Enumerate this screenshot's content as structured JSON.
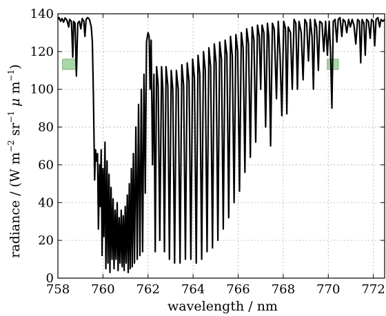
{
  "chart_data": {
    "type": "line",
    "title": "",
    "xlabel": "wavelength / nm",
    "ylabel_parts": {
      "start": "radiance / (W m",
      "sup1": "−2",
      "mid": " sr",
      "sup2": "−1",
      "mu": " μ",
      "end": " m",
      "sup3": "−1",
      "close": ")"
    },
    "xlim": [
      758,
      772.5
    ],
    "ylim": [
      0,
      140
    ],
    "xticks": [
      758,
      760,
      762,
      764,
      766,
      768,
      770,
      772
    ],
    "yticks": [
      0,
      20,
      40,
      60,
      80,
      100,
      120,
      140
    ],
    "grid": true,
    "line_color": "#000000",
    "highlight_color": "#8cc98c",
    "highlights": [
      {
        "x0": 758.2,
        "x1": 758.85,
        "y0": 110.5,
        "y1": 116
      },
      {
        "x0": 769.95,
        "x1": 770.45,
        "y0": 110.5,
        "y1": 116
      }
    ],
    "series": [
      {
        "values": [
          [
            758.0,
            137.0
          ],
          [
            758.05,
            138.0
          ],
          [
            758.12,
            136.0
          ],
          [
            758.18,
            137.5
          ],
          [
            758.25,
            135.5
          ],
          [
            758.32,
            137.8
          ],
          [
            758.4,
            136.5
          ],
          [
            758.48,
            133.0
          ],
          [
            758.52,
            137.0
          ],
          [
            758.6,
            136.0
          ],
          [
            758.66,
            117.0
          ],
          [
            758.7,
            136.0
          ],
          [
            758.76,
            135.0
          ],
          [
            758.82,
            107.0
          ],
          [
            758.88,
            135.0
          ],
          [
            758.95,
            136.0
          ],
          [
            759.02,
            132.0
          ],
          [
            759.08,
            137.5
          ],
          [
            759.15,
            136.0
          ],
          [
            759.2,
            128.0
          ],
          [
            759.25,
            137.0
          ],
          [
            759.32,
            138.0
          ],
          [
            759.4,
            137.0
          ],
          [
            759.48,
            133.0
          ],
          [
            759.53,
            125.0
          ],
          [
            759.58,
            95.0
          ],
          [
            759.63,
            52.0
          ],
          [
            759.67,
            68.0
          ],
          [
            759.71,
            62.0
          ],
          [
            759.76,
            66.0
          ],
          [
            759.8,
            26.0
          ],
          [
            759.85,
            60.0
          ],
          [
            759.88,
            38.0
          ],
          [
            759.92,
            68.0
          ],
          [
            759.96,
            12.0
          ],
          [
            760.0,
            58.0
          ],
          [
            760.04,
            22.0
          ],
          [
            760.09,
            72.0
          ],
          [
            760.13,
            5.0
          ],
          [
            760.18,
            62.0
          ],
          [
            760.22,
            8.0
          ],
          [
            760.27,
            55.0
          ],
          [
            760.31,
            3.0
          ],
          [
            760.36,
            48.0
          ],
          [
            760.4,
            10.0
          ],
          [
            760.45,
            42.0
          ],
          [
            760.49,
            5.0
          ],
          [
            760.54,
            36.0
          ],
          [
            760.58,
            10.0
          ],
          [
            760.63,
            40.0
          ],
          [
            760.67,
            4.0
          ],
          [
            760.72,
            32.0
          ],
          [
            760.76,
            8.0
          ],
          [
            760.81,
            36.0
          ],
          [
            760.85,
            6.0
          ],
          [
            760.9,
            33.0
          ],
          [
            760.94,
            4.0
          ],
          [
            760.99,
            38.0
          ],
          [
            761.03,
            8.0
          ],
          [
            761.08,
            44.0
          ],
          [
            761.12,
            3.0
          ],
          [
            761.17,
            50.0
          ],
          [
            761.21,
            5.0
          ],
          [
            761.26,
            58.0
          ],
          [
            761.3,
            6.0
          ],
          [
            761.35,
            66.0
          ],
          [
            761.4,
            8.0
          ],
          [
            761.46,
            80.0
          ],
          [
            761.52,
            10.0
          ],
          [
            761.58,
            92.0
          ],
          [
            761.64,
            12.0
          ],
          [
            761.7,
            100.0
          ],
          [
            761.76,
            14.0
          ],
          [
            761.82,
            108.0
          ],
          [
            761.88,
            45.0
          ],
          [
            761.93,
            125.0
          ],
          [
            762.0,
            130.0
          ],
          [
            762.05,
            128.0
          ],
          [
            762.09,
            100.0
          ],
          [
            762.14,
            126.0
          ],
          [
            762.2,
            60.0
          ],
          [
            762.26,
            108.0
          ],
          [
            762.32,
            14.0
          ],
          [
            762.38,
            112.0
          ],
          [
            762.45,
            102.0
          ],
          [
            762.52,
            20.0
          ],
          [
            762.6,
            112.0
          ],
          [
            762.66,
            100.0
          ],
          [
            762.73,
            14.0
          ],
          [
            762.8,
            112.0
          ],
          [
            762.88,
            102.0
          ],
          [
            762.95,
            10.0
          ],
          [
            763.03,
            110.0
          ],
          [
            763.1,
            100.0
          ],
          [
            763.18,
            8.0
          ],
          [
            763.26,
            110.0
          ],
          [
            763.34,
            100.0
          ],
          [
            763.42,
            8.0
          ],
          [
            763.5,
            113.0
          ],
          [
            763.58,
            102.0
          ],
          [
            763.66,
            10.0
          ],
          [
            763.74,
            114.0
          ],
          [
            763.82,
            104.0
          ],
          [
            763.9,
            10.0
          ],
          [
            763.98,
            116.0
          ],
          [
            764.06,
            106.0
          ],
          [
            764.14,
            8.0
          ],
          [
            764.22,
            118.0
          ],
          [
            764.3,
            108.0
          ],
          [
            764.38,
            10.0
          ],
          [
            764.46,
            120.0
          ],
          [
            764.54,
            110.0
          ],
          [
            764.62,
            14.0
          ],
          [
            764.7,
            122.0
          ],
          [
            764.78,
            112.0
          ],
          [
            764.86,
            16.0
          ],
          [
            764.94,
            124.0
          ],
          [
            765.02,
            114.0
          ],
          [
            765.1,
            20.0
          ],
          [
            765.18,
            125.0
          ],
          [
            765.26,
            116.0
          ],
          [
            765.34,
            26.0
          ],
          [
            765.42,
            126.0
          ],
          [
            765.5,
            118.0
          ],
          [
            765.58,
            32.0
          ],
          [
            765.66,
            128.0
          ],
          [
            765.74,
            118.0
          ],
          [
            765.82,
            40.0
          ],
          [
            765.9,
            129.0
          ],
          [
            765.98,
            120.0
          ],
          [
            766.06,
            46.0
          ],
          [
            766.14,
            130.0
          ],
          [
            766.22,
            122.0
          ],
          [
            766.3,
            56.0
          ],
          [
            766.38,
            132.0
          ],
          [
            766.46,
            124.0
          ],
          [
            766.54,
            64.0
          ],
          [
            766.62,
            133.0
          ],
          [
            766.7,
            126.0
          ],
          [
            766.78,
            72.0
          ],
          [
            766.86,
            134.0
          ],
          [
            766.94,
            128.0
          ],
          [
            767.0,
            100.0
          ],
          [
            767.06,
            134.0
          ],
          [
            767.14,
            130.0
          ],
          [
            767.22,
            80.0
          ],
          [
            767.3,
            135.0
          ],
          [
            767.36,
            128.0
          ],
          [
            767.44,
            70.0
          ],
          [
            767.52,
            135.0
          ],
          [
            767.6,
            132.0
          ],
          [
            767.7,
            95.0
          ],
          [
            767.78,
            136.0
          ],
          [
            767.86,
            118.0
          ],
          [
            767.94,
            86.0
          ],
          [
            768.02,
            136.0
          ],
          [
            768.1,
            132.0
          ],
          [
            768.16,
            87.0
          ],
          [
            768.22,
            133.0
          ],
          [
            768.32,
            130.0
          ],
          [
            768.4,
            100.0
          ],
          [
            768.48,
            137.0
          ],
          [
            768.56,
            135.0
          ],
          [
            768.63,
            100.0
          ],
          [
            768.7,
            136.0
          ],
          [
            768.8,
            130.0
          ],
          [
            768.88,
            105.0
          ],
          [
            768.96,
            137.0
          ],
          [
            769.04,
            135.0
          ],
          [
            769.12,
            115.0
          ],
          [
            769.2,
            137.0
          ],
          [
            769.28,
            128.0
          ],
          [
            769.34,
            100.0
          ],
          [
            769.4,
            137.0
          ],
          [
            769.48,
            133.0
          ],
          [
            769.56,
            110.0
          ],
          [
            769.62,
            136.0
          ],
          [
            769.72,
            135.0
          ],
          [
            769.8,
            120.0
          ],
          [
            769.88,
            136.0
          ],
          [
            769.96,
            118.0
          ],
          [
            770.04,
            136.0
          ],
          [
            770.1,
            120.0
          ],
          [
            770.16,
            90.0
          ],
          [
            770.22,
            136.0
          ],
          [
            770.3,
            137.0
          ],
          [
            770.38,
            125.0
          ],
          [
            770.44,
            137.0
          ],
          [
            770.52,
            138.0
          ],
          [
            770.6,
            128.0
          ],
          [
            770.66,
            137.0
          ],
          [
            770.74,
            136.0
          ],
          [
            770.82,
            130.0
          ],
          [
            770.9,
            137.0
          ],
          [
            770.98,
            133.0
          ],
          [
            771.06,
            137.0
          ],
          [
            771.14,
            134.0
          ],
          [
            771.22,
            124.0
          ],
          [
            771.3,
            137.0
          ],
          [
            771.38,
            136.0
          ],
          [
            771.44,
            114.0
          ],
          [
            771.5,
            137.0
          ],
          [
            771.58,
            135.0
          ],
          [
            771.64,
            118.0
          ],
          [
            771.7,
            137.0
          ],
          [
            771.78,
            136.0
          ],
          [
            771.86,
            127.0
          ],
          [
            771.92,
            137.0
          ],
          [
            772.0,
            136.0
          ],
          [
            772.06,
            123.0
          ],
          [
            772.12,
            137.0
          ],
          [
            772.2,
            138.0
          ],
          [
            772.28,
            133.0
          ],
          [
            772.34,
            137.0
          ],
          [
            772.42,
            136.0
          ],
          [
            772.5,
            137.0
          ]
        ]
      }
    ]
  }
}
